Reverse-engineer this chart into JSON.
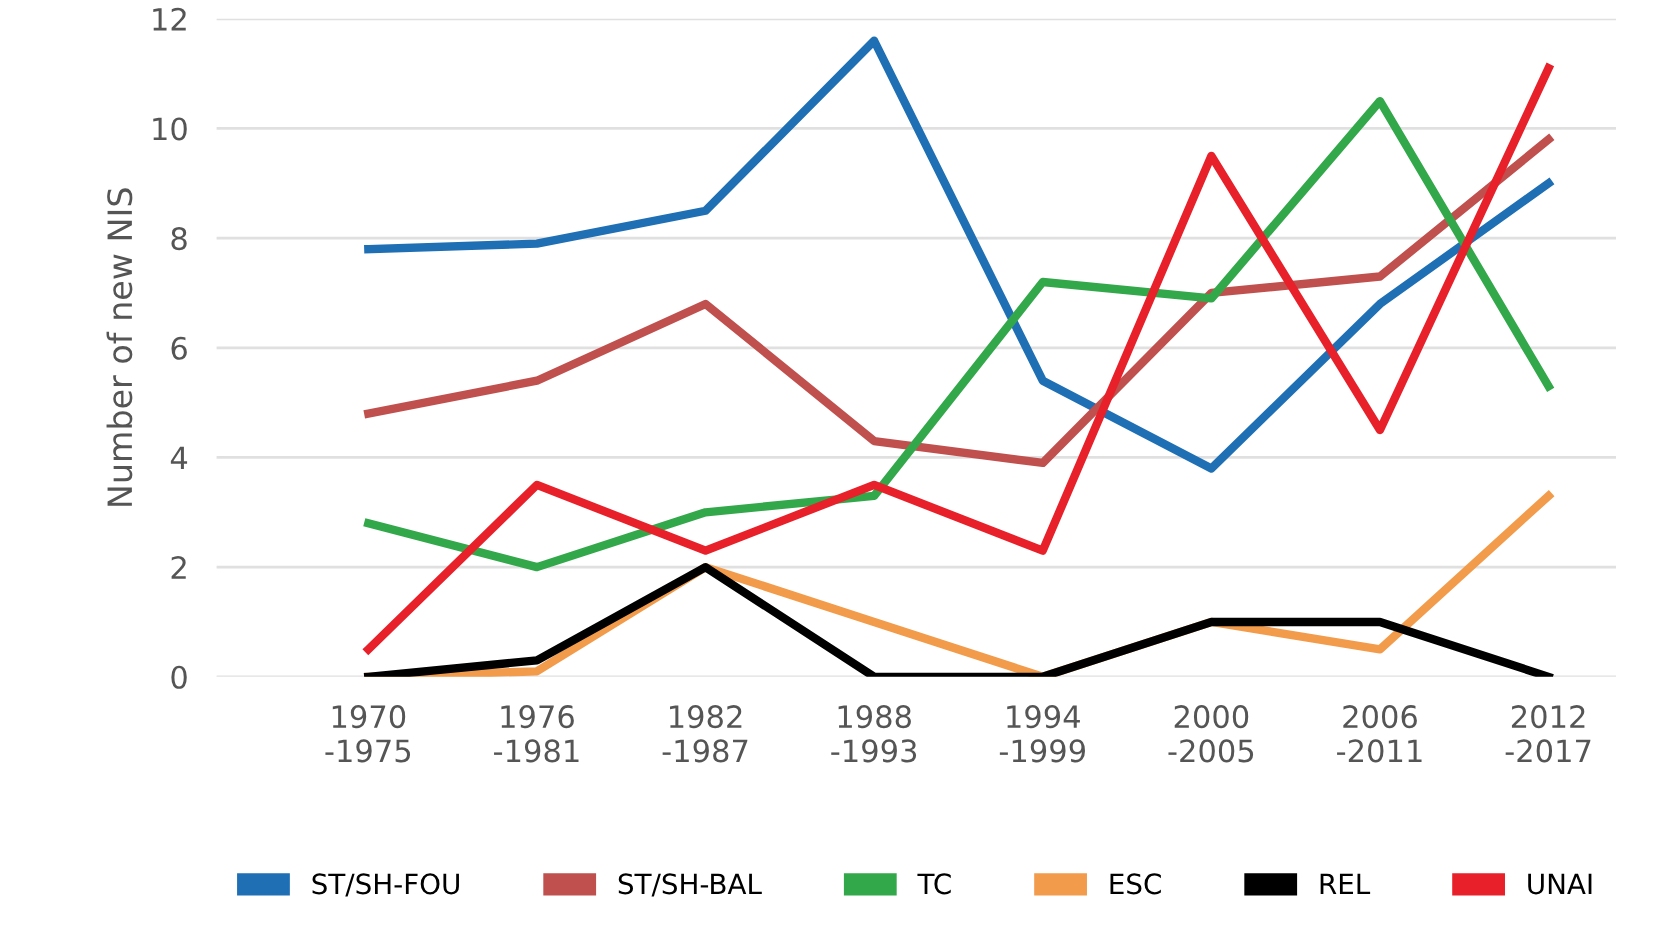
{
  "chart_data": {
    "type": "line",
    "ylabel": "Number of new NIS",
    "categories": [
      "1970\n-1975",
      "1976\n-1981",
      "1982\n-1987",
      "1988\n-1993",
      "1994\n-1999",
      "2000\n-2005",
      "2006\n-2011",
      "2012\n-2017"
    ],
    "ylim": [
      0,
      12
    ],
    "yticks": [
      0,
      2,
      4,
      6,
      8,
      10,
      12
    ],
    "grid": "y",
    "legend": "bottom",
    "marker": "none",
    "line_style": "solid",
    "series": [
      {
        "name": "ST/SH-FOU",
        "color": "#1f6fb5",
        "values": [
          7.8,
          7.9,
          8.5,
          11.6,
          5.4,
          3.8,
          6.8,
          9.0
        ]
      },
      {
        "name": "ST/SH-BAL",
        "color": "#c0504d",
        "values": [
          4.8,
          5.4,
          6.8,
          4.3,
          3.9,
          7.0,
          7.3,
          9.8
        ]
      },
      {
        "name": "TC",
        "color": "#33a84a",
        "values": [
          2.8,
          2.0,
          3.0,
          3.3,
          7.2,
          6.9,
          10.5,
          5.3
        ]
      },
      {
        "name": "ESC",
        "color": "#f29b4b",
        "values": [
          0,
          0.1,
          2.0,
          1.0,
          0,
          1.0,
          0.5,
          3.3
        ]
      },
      {
        "name": "REL",
        "color": "#000000",
        "values": [
          0,
          0.3,
          2.0,
          0,
          0,
          1.0,
          1.0,
          0
        ]
      },
      {
        "name": "UNAI",
        "color": "#e8202a",
        "values": [
          0.5,
          3.5,
          2.3,
          3.5,
          2.3,
          9.5,
          4.5,
          11.1
        ]
      }
    ]
  }
}
